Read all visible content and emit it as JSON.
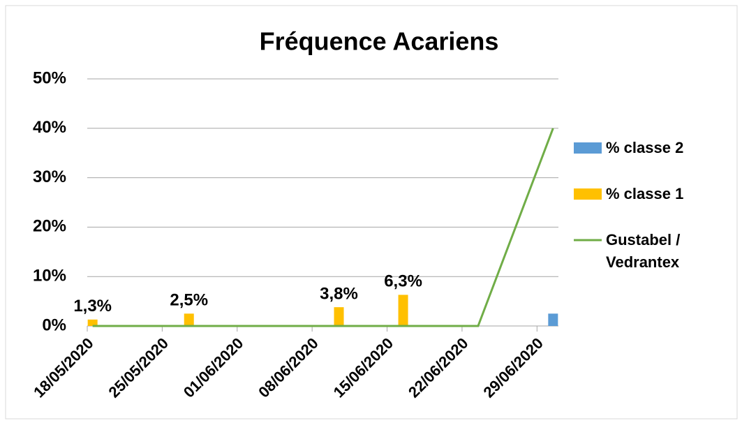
{
  "chart_data": {
    "type": "bar",
    "title": "Fréquence Acariens",
    "x": [
      "18/05/2020",
      "27/05/2020",
      "10/06/2020",
      "16/06/2020",
      "23/06/2020",
      "30/06/2020"
    ],
    "xlim": [
      "18/05/2020",
      "30/06/2020"
    ],
    "xticks": [
      "18/05/2020",
      "25/05/2020",
      "01/06/2020",
      "08/06/2020",
      "15/06/2020",
      "22/06/2020",
      "29/06/2020"
    ],
    "ylim": [
      0,
      50
    ],
    "yticks": [
      {
        "value": 0,
        "label": "0%"
      },
      {
        "value": 10,
        "label": "10%"
      },
      {
        "value": 20,
        "label": "20%"
      },
      {
        "value": 30,
        "label": "30%"
      },
      {
        "value": 40,
        "label": "40%"
      },
      {
        "value": 50,
        "label": "50%"
      }
    ],
    "grid": true,
    "legend": "right",
    "series": [
      {
        "name": "% classe 2",
        "type": "bar",
        "color": "#5b9bd5",
        "values": [
          null,
          null,
          null,
          null,
          null,
          2.5
        ]
      },
      {
        "name": "% classe 1",
        "type": "bar",
        "color": "#ffc000",
        "values": [
          1.3,
          2.5,
          3.8,
          6.3,
          null,
          null
        ],
        "value_labels": [
          "1,3%",
          "2,5%",
          "3,8%",
          "6,3%",
          null,
          null
        ]
      },
      {
        "name": "Gustabel / Vedrantex",
        "type": "line",
        "color": "#70ad47",
        "values": [
          0,
          0,
          0,
          0,
          0,
          40
        ]
      }
    ]
  }
}
